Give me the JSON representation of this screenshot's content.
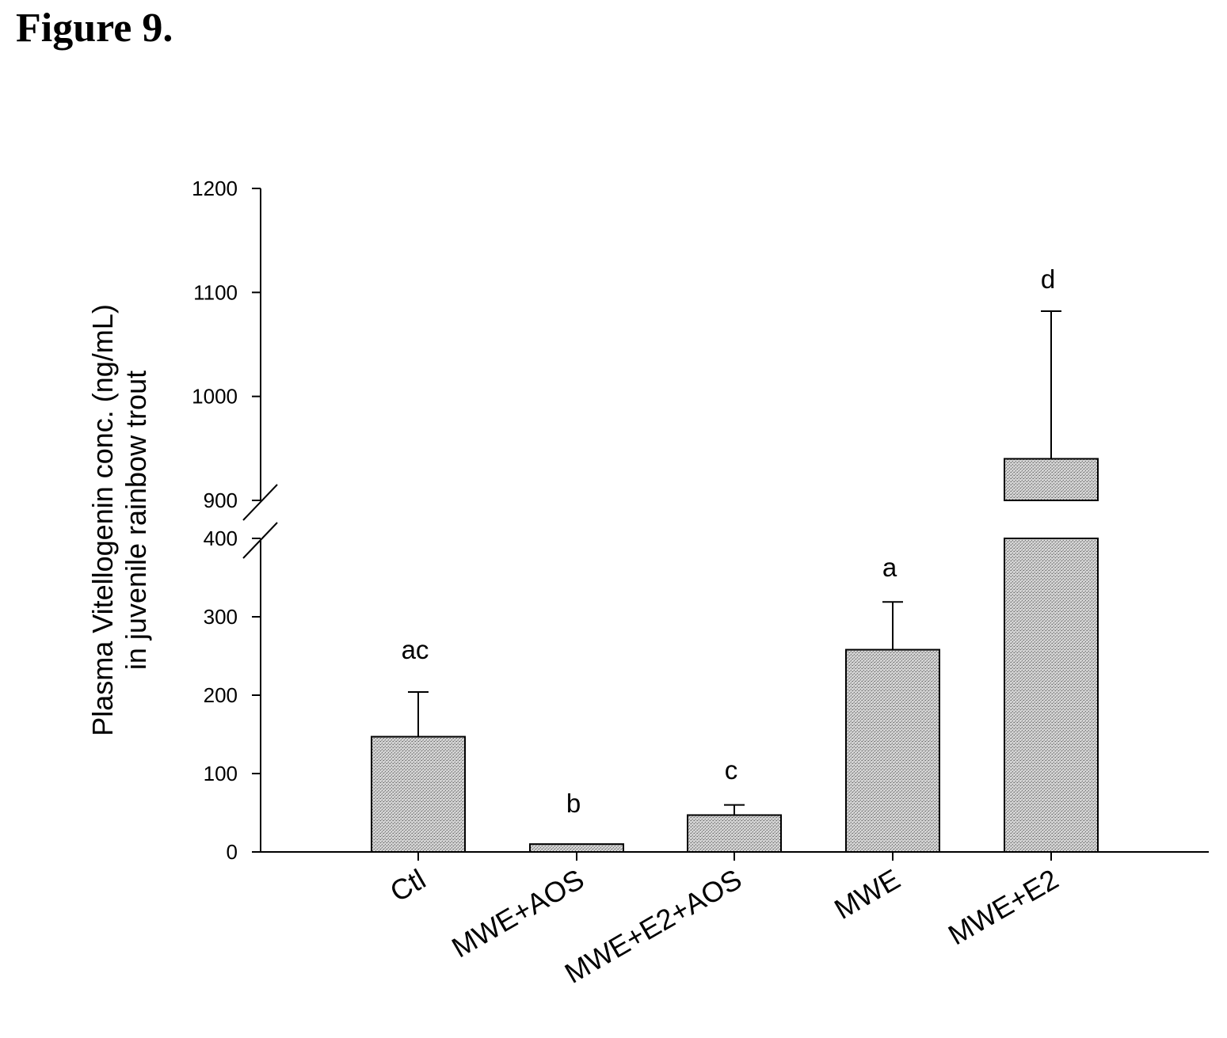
{
  "figure": {
    "title": "Figure 9."
  },
  "chart_data": {
    "type": "bar",
    "categories": [
      "Ctl",
      "MWE+AOS",
      "MWE+E2+AOS",
      "MWE",
      "MWE+E2"
    ],
    "values": [
      147,
      10,
      47,
      258,
      940
    ],
    "errors_upper": [
      204,
      10,
      60,
      319,
      1082
    ],
    "significance_labels": [
      "ac",
      "b",
      "c",
      "a",
      "d"
    ],
    "xlabel": "",
    "ylabel_lines": [
      "Plasma Vitellogenin conc. (ng/mL)",
      "in juvenile rainbow trout"
    ],
    "axis_break": {
      "lower_segment": [
        0,
        400
      ],
      "upper_segment": [
        900,
        1200
      ]
    },
    "yticks_lower": [
      0,
      100,
      200,
      300,
      400
    ],
    "yticks_upper": [
      900,
      1000,
      1100,
      1200
    ],
    "colors": {
      "bar_fill": "#c8c8c8",
      "bar_stroke": "#000000"
    },
    "grid": false
  }
}
